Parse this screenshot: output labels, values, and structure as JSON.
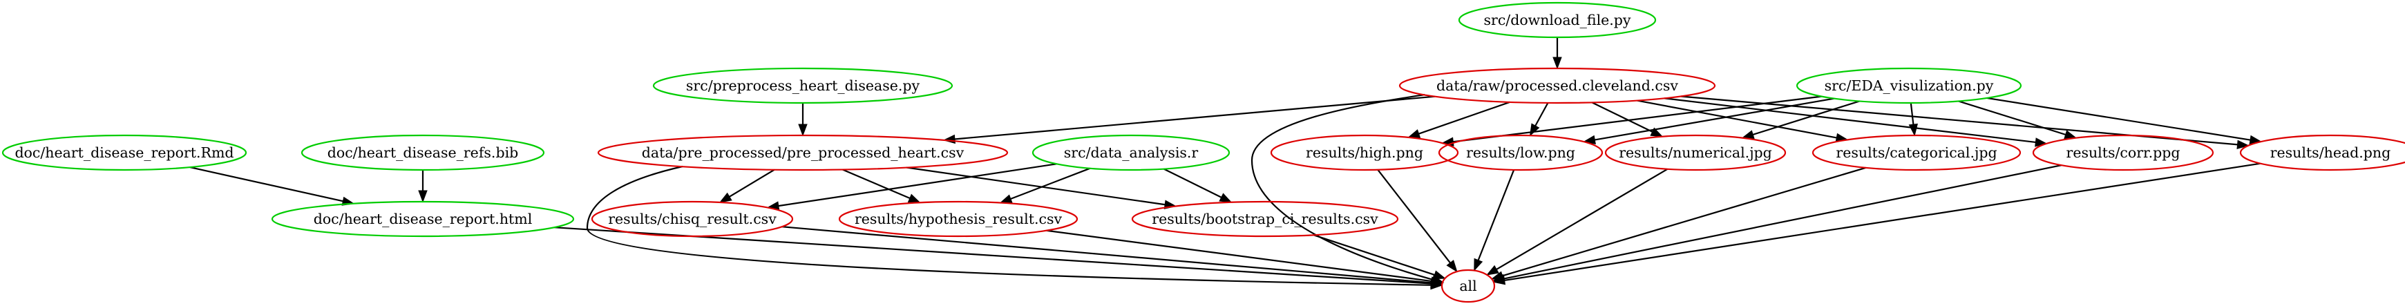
{
  "colors": {
    "source": "#00cc00",
    "target": "#dd0000",
    "edge": "#000000"
  },
  "nodes": [
    {
      "id": "download",
      "label": "src/download_file.py",
      "kind": "source"
    },
    {
      "id": "raw",
      "label": "data/raw/processed.cleveland.csv",
      "kind": "target"
    },
    {
      "id": "preprocess",
      "label": "src/preprocess_heart_disease.py",
      "kind": "source"
    },
    {
      "id": "eda",
      "label": "src/EDA_visulization.py",
      "kind": "source"
    },
    {
      "id": "rmd",
      "label": "doc/heart_disease_report.Rmd",
      "kind": "source"
    },
    {
      "id": "bib",
      "label": "doc/heart_disease_refs.bib",
      "kind": "source"
    },
    {
      "id": "pre",
      "label": "data/pre_processed/pre_processed_heart.csv",
      "kind": "target"
    },
    {
      "id": "analysis",
      "label": "src/data_analysis.r",
      "kind": "source"
    },
    {
      "id": "high",
      "label": "results/high.png",
      "kind": "target"
    },
    {
      "id": "low",
      "label": "results/low.png",
      "kind": "target"
    },
    {
      "id": "numerical",
      "label": "results/numerical.jpg",
      "kind": "target"
    },
    {
      "id": "categorical",
      "label": "results/categorical.jpg",
      "kind": "target"
    },
    {
      "id": "corr",
      "label": "results/corr.ppg",
      "kind": "target"
    },
    {
      "id": "head",
      "label": "results/head.png",
      "kind": "target"
    },
    {
      "id": "html",
      "label": "doc/heart_disease_report.html",
      "kind": "source"
    },
    {
      "id": "chisq",
      "label": "results/chisq_result.csv",
      "kind": "target"
    },
    {
      "id": "hypothesis",
      "label": "results/hypothesis_result.csv",
      "kind": "target"
    },
    {
      "id": "bootstrap",
      "label": "results/bootstrap_ci_results.csv",
      "kind": "target"
    },
    {
      "id": "all",
      "label": "all",
      "kind": "target"
    }
  ],
  "edges": [
    [
      "download",
      "raw"
    ],
    [
      "preprocess",
      "pre"
    ],
    [
      "raw",
      "pre"
    ],
    [
      "raw",
      "high"
    ],
    [
      "raw",
      "low"
    ],
    [
      "raw",
      "numerical"
    ],
    [
      "raw",
      "categorical"
    ],
    [
      "raw",
      "corr"
    ],
    [
      "raw",
      "head"
    ],
    [
      "raw",
      "all"
    ],
    [
      "eda",
      "high"
    ],
    [
      "eda",
      "low"
    ],
    [
      "eda",
      "numerical"
    ],
    [
      "eda",
      "categorical"
    ],
    [
      "eda",
      "corr"
    ],
    [
      "eda",
      "head"
    ],
    [
      "rmd",
      "html"
    ],
    [
      "bib",
      "html"
    ],
    [
      "pre",
      "chisq"
    ],
    [
      "pre",
      "hypothesis"
    ],
    [
      "pre",
      "bootstrap"
    ],
    [
      "pre",
      "all"
    ],
    [
      "analysis",
      "chisq"
    ],
    [
      "analysis",
      "hypothesis"
    ],
    [
      "analysis",
      "bootstrap"
    ],
    [
      "html",
      "all"
    ],
    [
      "chisq",
      "all"
    ],
    [
      "hypothesis",
      "all"
    ],
    [
      "bootstrap",
      "all"
    ],
    [
      "high",
      "all"
    ],
    [
      "low",
      "all"
    ],
    [
      "numerical",
      "all"
    ],
    [
      "categorical",
      "all"
    ],
    [
      "corr",
      "all"
    ],
    [
      "head",
      "all"
    ]
  ]
}
